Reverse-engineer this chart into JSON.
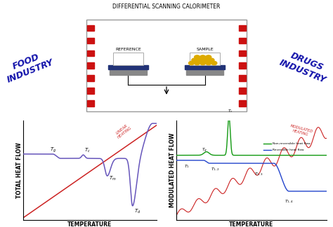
{
  "title": "DIFFERENTIAL SCANNING CALORIMETER",
  "title_fontsize": 5.5,
  "food_label": "FOOD\nINDUSTRY",
  "drugs_label": "DRUGS\nINDUSTRY",
  "reference_label": "REFERENCE",
  "sample_label": "SAMPLE",
  "left_graph_ylabel": "TOTAL HEAT FLOW",
  "left_graph_xlabel": "TEMPERATURE",
  "left_linear_label": "LINEAR\nHEATING",
  "right_graph_ylabel": "MODULATED HEAT FLOW",
  "right_graph_xlabel": "TEMPERATURE",
  "right_modulated_label": "MODULATED\nHEATING",
  "left_curve_color": "#6655bb",
  "linear_heating_color": "#cc2222",
  "right_red_color": "#cc2222",
  "right_green_color": "#119911",
  "right_blue_color": "#2244cc",
  "food_color": "#1111aa",
  "drugs_color": "#1111aa",
  "red_square_color": "#cc1111",
  "sample_sphere_color": "#ddaa00",
  "dark_blue_lid": "#223377",
  "gray_base": "#888888",
  "legend_green": "#119911",
  "legend_blue": "#2244cc"
}
